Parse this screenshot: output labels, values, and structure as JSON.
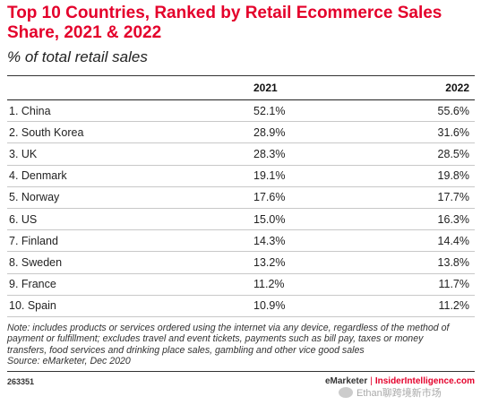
{
  "chart_data": {
    "type": "table",
    "title": "Top 10 Countries, Ranked by Retail Ecommerce Sales Share, 2021 & 2022",
    "subtitle": "% of total retail sales",
    "columns": [
      "",
      "2021",
      "2022"
    ],
    "rows": [
      {
        "label": "1. China",
        "v2021": "52.1%",
        "v2022": "55.6%"
      },
      {
        "label": "2. South Korea",
        "v2021": "28.9%",
        "v2022": "31.6%"
      },
      {
        "label": "3. UK",
        "v2021": "28.3%",
        "v2022": "28.5%"
      },
      {
        "label": "4. Denmark",
        "v2021": "19.1%",
        "v2022": "19.8%"
      },
      {
        "label": "5. Norway",
        "v2021": "17.6%",
        "v2022": "17.7%"
      },
      {
        "label": "6. US",
        "v2021": "15.0%",
        "v2022": "16.3%"
      },
      {
        "label": "7. Finland",
        "v2021": "14.3%",
        "v2022": "14.4%"
      },
      {
        "label": "8. Sweden",
        "v2021": "13.2%",
        "v2022": "13.8%"
      },
      {
        "label": "9. France",
        "v2021": "11.2%",
        "v2022": "11.7%"
      },
      {
        "label": "10. Spain",
        "v2021": "10.9%",
        "v2022": "11.2%"
      }
    ],
    "note": "Note: includes products or services ordered using the internet via any device, regardless of the method of payment or fulfillment; excludes travel and event tickets, payments such as bill pay, taxes or money transfers, food services and drinking place sales, gambling and other vice good sales",
    "source": "Source: eMarketer, Dec 2020"
  },
  "footer": {
    "id": "263351",
    "brand_left": "eMarketer",
    "separator": "|",
    "brand_right": "InsiderIntelligence.com"
  },
  "watermark": "Ethan聊跨境新市场",
  "colors": {
    "accent": "#e4002b",
    "text": "#222222"
  }
}
